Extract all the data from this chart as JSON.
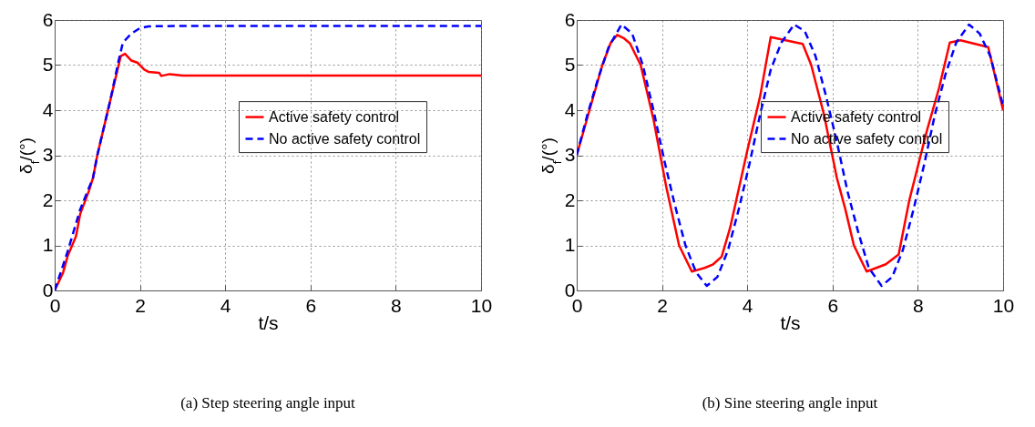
{
  "chart_data": [
    {
      "type": "line",
      "title": "(a) Step steering angle input",
      "xlabel": "t/s",
      "ylabel": "δ$_{f}$/(°)",
      "xlim": [
        0,
        10
      ],
      "ylim": [
        0,
        6
      ],
      "xticks": [
        0,
        2,
        4,
        6,
        8,
        10
      ],
      "yticks": [
        0,
        1,
        2,
        3,
        4,
        5,
        6
      ],
      "grid": true,
      "legend": "right",
      "series": [
        {
          "name": "Active safety control",
          "color": "#ff0000",
          "line_style": "solid",
          "x": [
            0,
            0.2,
            0.3,
            0.5,
            0.6,
            0.8,
            0.9,
            1.0,
            1.2,
            1.3,
            1.5,
            1.55,
            1.65,
            1.8,
            1.95,
            2.1,
            2.2,
            2.45,
            2.5,
            2.7,
            3.0,
            10
          ],
          "values": [
            0,
            0.4,
            0.75,
            1.2,
            1.7,
            2.2,
            2.5,
            3.0,
            3.8,
            4.2,
            5.0,
            5.2,
            5.25,
            5.1,
            5.05,
            4.9,
            4.85,
            4.83,
            4.76,
            4.8,
            4.77,
            4.77
          ]
        },
        {
          "name": "No active safety control",
          "color": "#0000ff",
          "line_style": "dashed",
          "x": [
            0,
            0.3,
            0.6,
            0.9,
            1.0,
            1.3,
            1.5,
            1.6,
            1.8,
            2.0,
            2.2,
            3,
            10
          ],
          "values": [
            0,
            0.85,
            1.8,
            2.5,
            3.0,
            4.2,
            5.1,
            5.5,
            5.7,
            5.82,
            5.86,
            5.87,
            5.87
          ]
        }
      ]
    },
    {
      "type": "line",
      "title": "(b) Sine steering angle input",
      "xlabel": "t/s",
      "ylabel": "δ$_{f}$/(°)",
      "xlim": [
        0,
        10
      ],
      "ylim": [
        0,
        6
      ],
      "xticks": [
        0,
        2,
        4,
        6,
        8,
        10
      ],
      "yticks": [
        0,
        1,
        2,
        3,
        4,
        5,
        6
      ],
      "grid": true,
      "legend": "right",
      "series": [
        {
          "name": "Active safety control",
          "color": "#ff0000",
          "line_style": "solid",
          "x": [
            0,
            0.3,
            0.6,
            0.8,
            0.95,
            1.1,
            1.25,
            1.5,
            1.8,
            2.1,
            2.4,
            2.7,
            3.0,
            3.2,
            3.4,
            3.6,
            4.0,
            4.3,
            4.55,
            5.3,
            5.5,
            5.8,
            6.1,
            6.3,
            6.5,
            6.8,
            7.25,
            7.55,
            7.8,
            8.2,
            8.5,
            8.75,
            9.0,
            9.65,
            10
          ],
          "values": [
            3.0,
            4.0,
            5.0,
            5.5,
            5.67,
            5.6,
            5.48,
            5.0,
            3.8,
            2.3,
            1.0,
            0.42,
            0.5,
            0.58,
            0.75,
            1.4,
            3.1,
            4.3,
            5.62,
            5.47,
            5.0,
            3.9,
            2.5,
            1.8,
            1.0,
            0.42,
            0.58,
            0.8,
            2.0,
            3.5,
            4.5,
            5.5,
            5.55,
            5.4,
            4.0
          ]
        },
        {
          "name": "No active safety control",
          "color": "#0000ff",
          "line_style": "dashed",
          "x": [
            0,
            0.25,
            0.5,
            0.75,
            1.05,
            1.3,
            1.55,
            1.8,
            2.05,
            2.3,
            2.55,
            2.8,
            3.05,
            3.3,
            3.55,
            3.8,
            4.05,
            4.3,
            4.55,
            4.8,
            5.1,
            5.35,
            5.6,
            5.85,
            6.1,
            6.35,
            6.6,
            6.85,
            7.15,
            7.4,
            7.65,
            7.9,
            8.15,
            8.4,
            8.65,
            8.9,
            9.2,
            9.45,
            9.7,
            10
          ],
          "values": [
            3.0,
            3.9,
            4.7,
            5.4,
            5.9,
            5.7,
            5.0,
            4.0,
            2.9,
            1.9,
            1.0,
            0.4,
            0.1,
            0.3,
            0.9,
            1.8,
            2.8,
            3.9,
            4.9,
            5.5,
            5.9,
            5.75,
            5.2,
            4.3,
            3.3,
            2.2,
            1.3,
            0.5,
            0.1,
            0.3,
            0.9,
            1.8,
            2.8,
            3.9,
            4.8,
            5.5,
            5.9,
            5.7,
            5.2,
            4.1
          ]
        }
      ]
    }
  ]
}
